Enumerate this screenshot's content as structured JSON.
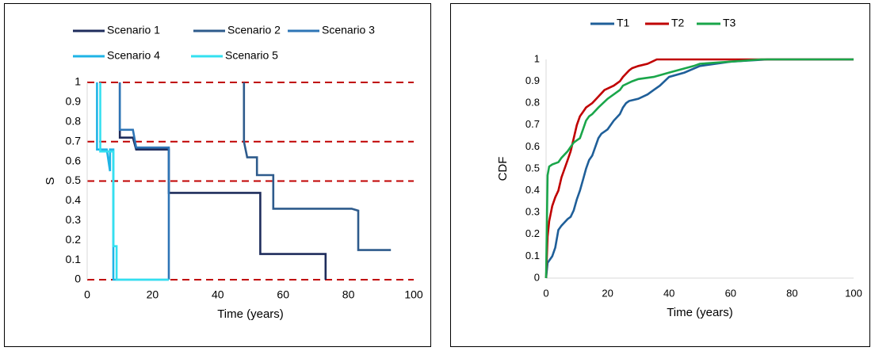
{
  "chart_data": [
    {
      "type": "line",
      "step": true,
      "xlabel": "Time (years)",
      "ylabel": "S",
      "xlim": [
        0,
        100
      ],
      "ylim": [
        0,
        1
      ],
      "x_ticks": [
        "0",
        "20",
        "40",
        "60",
        "80",
        "100"
      ],
      "y_ticks": [
        "0",
        "0.1",
        "0.2",
        "0.3",
        "0.4",
        "0.5",
        "0.6",
        "0.7",
        "0.8",
        "0.9",
        "1"
      ],
      "legend_position": "top",
      "reference_lines": [
        {
          "y": 1.0,
          "color": "#c00000",
          "style": "dashed"
        },
        {
          "y": 0.7,
          "color": "#c00000",
          "style": "dashed"
        },
        {
          "y": 0.5,
          "color": "#c00000",
          "style": "dashed"
        },
        {
          "y": 0.0,
          "color": "#c00000",
          "style": "dashed"
        }
      ],
      "series": [
        {
          "name": "Scenario 1",
          "color": "#1f2d5c",
          "x": [
            10,
            10,
            11,
            14,
            15,
            25,
            25,
            53,
            53,
            73,
            73
          ],
          "y": [
            1.0,
            0.72,
            0.72,
            0.72,
            0.66,
            0.66,
            0.44,
            0.44,
            0.13,
            0.13,
            0.0
          ]
        },
        {
          "name": "Scenario 2",
          "color": "#2e5b8c",
          "x": [
            48,
            48,
            49,
            52,
            52,
            57,
            57,
            81,
            83,
            83,
            93
          ],
          "y": [
            1.0,
            0.7,
            0.62,
            0.62,
            0.53,
            0.53,
            0.36,
            0.36,
            0.35,
            0.15,
            0.15
          ]
        },
        {
          "name": "Scenario 3",
          "color": "#2e75b6",
          "x": [
            10,
            10,
            14,
            15,
            25,
            25
          ],
          "y": [
            1.0,
            0.76,
            0.76,
            0.67,
            0.67,
            0.0
          ]
        },
        {
          "name": "Scenario 4",
          "color": "#1fb4e6",
          "x": [
            3,
            3,
            6,
            7,
            7,
            8,
            8,
            25
          ],
          "y": [
            1.0,
            0.66,
            0.66,
            0.55,
            0.66,
            0.66,
            0.0,
            0.0
          ]
        },
        {
          "name": "Scenario 5",
          "color": "#33e0f0",
          "x": [
            4,
            4,
            8,
            8,
            9,
            9,
            25
          ],
          "y": [
            1.0,
            0.65,
            0.65,
            0.17,
            0.17,
            0.0,
            0.0
          ]
        }
      ]
    },
    {
      "type": "line",
      "step": false,
      "xlabel": "Time (years)",
      "ylabel": "CDF",
      "xlim": [
        0,
        100
      ],
      "ylim": [
        0,
        1
      ],
      "x_ticks": [
        "0",
        "20",
        "40",
        "60",
        "80",
        "100"
      ],
      "y_ticks": [
        "0",
        "0.1",
        "0.2",
        "0.3",
        "0.4",
        "0.5",
        "0.6",
        "0.7",
        "0.8",
        "0.9",
        "1"
      ],
      "legend_position": "top",
      "series": [
        {
          "name": "T1",
          "color": "#1f5f99",
          "x": [
            0,
            0.5,
            2,
            3,
            4,
            5,
            7,
            8,
            9,
            10,
            11,
            12,
            13,
            14,
            15,
            16,
            17,
            18,
            20,
            22,
            24,
            25,
            26,
            27,
            30,
            33,
            35,
            37,
            40,
            45,
            50,
            60,
            72,
            100
          ],
          "y": [
            0,
            0.07,
            0.1,
            0.14,
            0.22,
            0.24,
            0.27,
            0.28,
            0.31,
            0.36,
            0.4,
            0.45,
            0.5,
            0.54,
            0.56,
            0.6,
            0.64,
            0.66,
            0.68,
            0.72,
            0.75,
            0.78,
            0.8,
            0.81,
            0.82,
            0.84,
            0.86,
            0.88,
            0.92,
            0.94,
            0.97,
            0.99,
            1.0,
            1.0
          ]
        },
        {
          "name": "T2",
          "color": "#c00000",
          "x": [
            0,
            0.5,
            1,
            2,
            3,
            4,
            5,
            6,
            7,
            8,
            9,
            10,
            11,
            12,
            13,
            15,
            17,
            19,
            22,
            24,
            25,
            27,
            28,
            30,
            33,
            36,
            45,
            100
          ],
          "y": [
            0,
            0.19,
            0.26,
            0.33,
            0.37,
            0.4,
            0.46,
            0.5,
            0.54,
            0.58,
            0.64,
            0.7,
            0.74,
            0.76,
            0.78,
            0.8,
            0.83,
            0.86,
            0.88,
            0.9,
            0.92,
            0.95,
            0.96,
            0.97,
            0.98,
            1.0,
            1.0,
            1.0
          ]
        },
        {
          "name": "T3",
          "color": "#1aa64a",
          "x": [
            0,
            0.3,
            0.5,
            1,
            2,
            4,
            5,
            7,
            8,
            9,
            10,
            11,
            12,
            13,
            14,
            15,
            17,
            20,
            24,
            25,
            28,
            30,
            35,
            40,
            48,
            50,
            60,
            70,
            80,
            100
          ],
          "y": [
            0,
            0.3,
            0.47,
            0.51,
            0.52,
            0.53,
            0.55,
            0.58,
            0.6,
            0.62,
            0.63,
            0.64,
            0.68,
            0.72,
            0.74,
            0.75,
            0.78,
            0.82,
            0.86,
            0.88,
            0.9,
            0.91,
            0.92,
            0.94,
            0.97,
            0.98,
            0.99,
            1.0,
            1.0,
            1.0
          ]
        }
      ]
    }
  ]
}
